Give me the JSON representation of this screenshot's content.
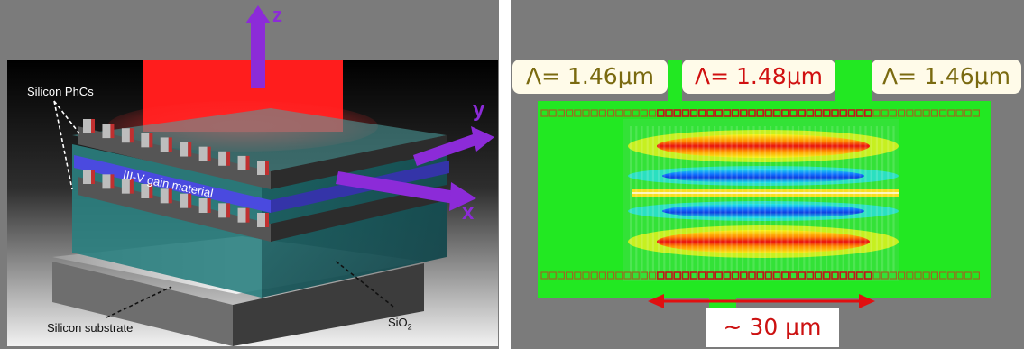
{
  "left_figure": {
    "label_phcs": "Silicon PhCs",
    "label_gain": "III-V gain material",
    "label_substrate": "Silicon substrate",
    "label_sio2": "SiO",
    "label_sio2_sub": "2",
    "axis_z": "z",
    "axis_y": "y",
    "axis_x": "x",
    "colors": {
      "axis": "#8c2bd8",
      "emission": "#ff1a1a",
      "gain_layer": "#4a4adf",
      "oxide": "#2c8c8c"
    }
  },
  "right_figure": {
    "lambda_left": "Λ= 1.46μm",
    "lambda_center": "Λ= 1.48μm",
    "lambda_right": "Λ= 1.46μm",
    "length_label": "~ 30 μm",
    "colors": {
      "field_bg": "#22e822",
      "outer_text": "#7a6a10",
      "center_text": "#d01010",
      "arrow": "#e01010"
    }
  }
}
